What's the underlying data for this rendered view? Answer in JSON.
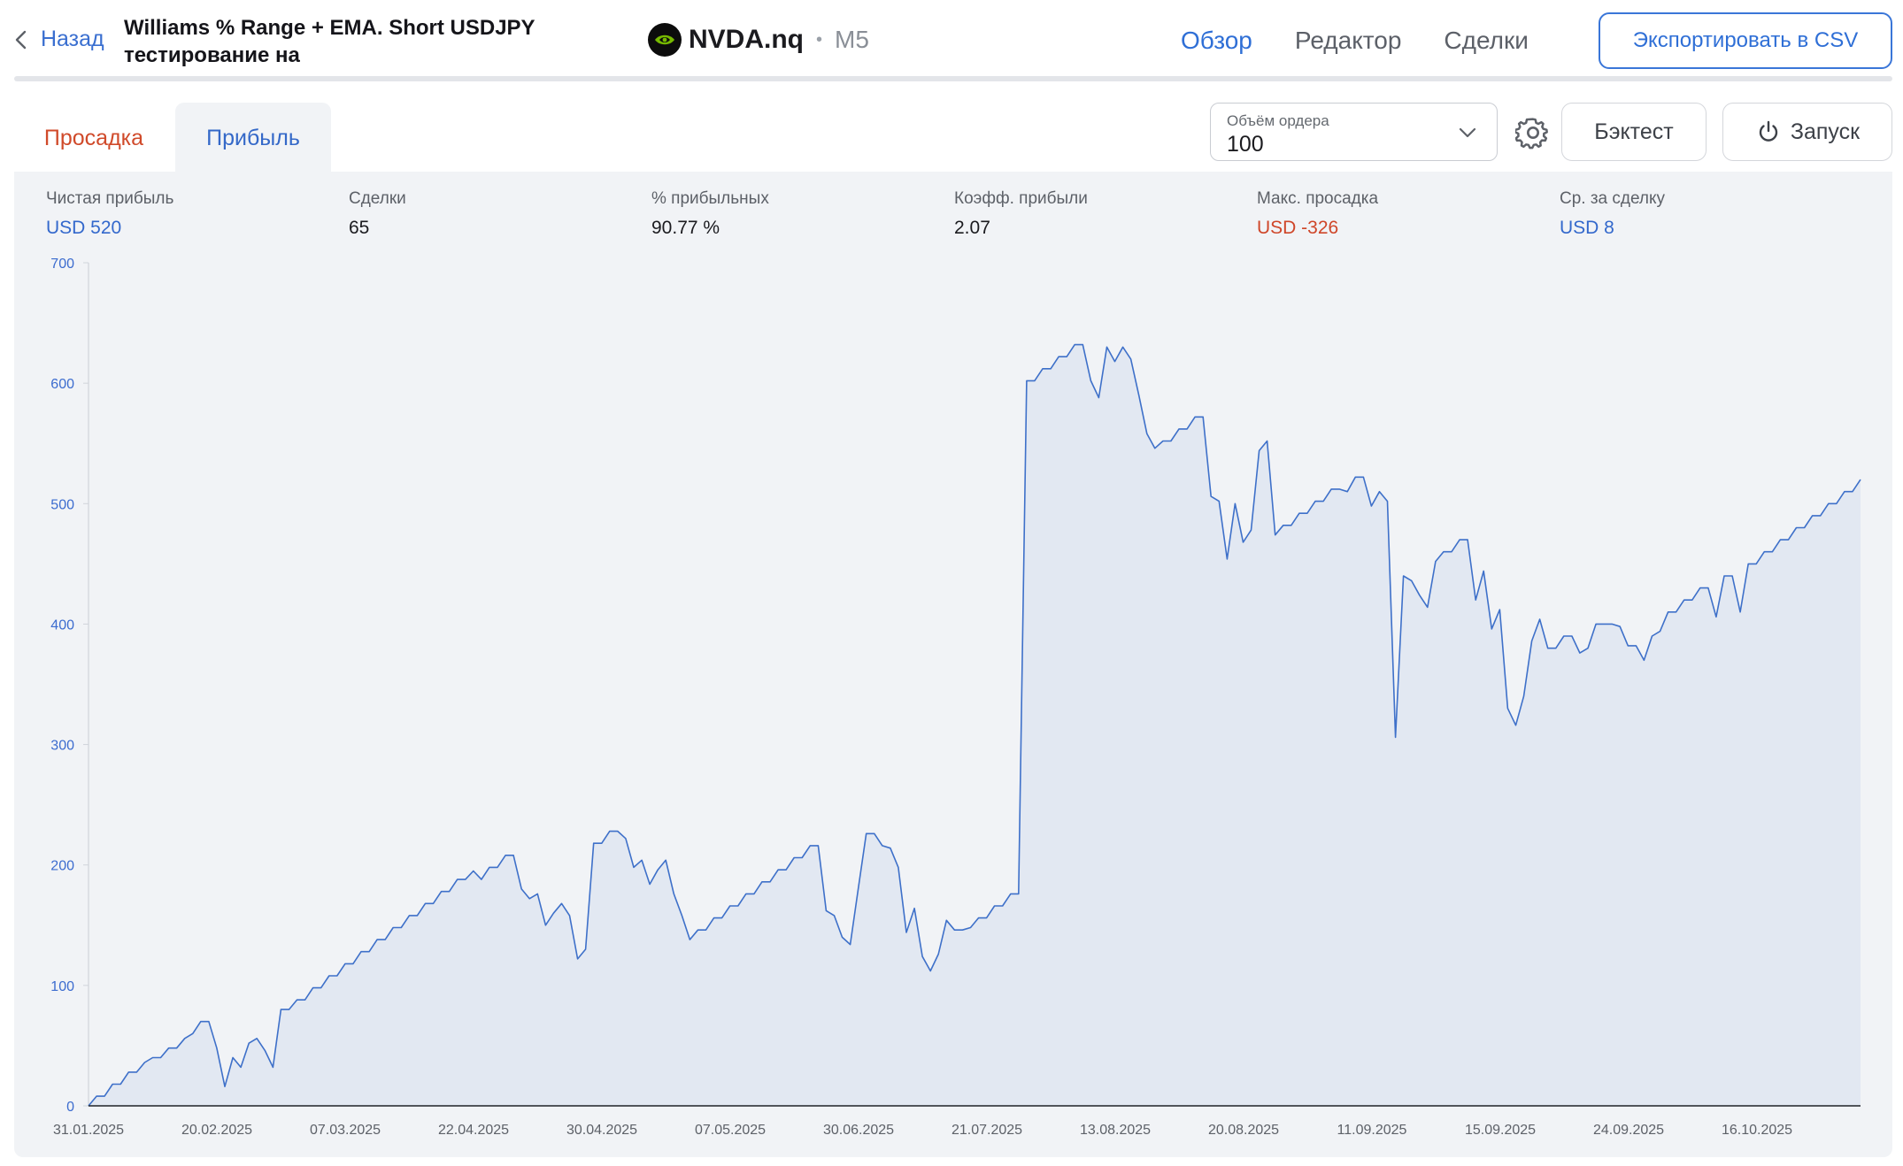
{
  "header": {
    "back_label": "Назад",
    "title": "Williams % Range + EMA. Short USDJPY тестирование на",
    "symbol": "NVDA.nq",
    "separator": "•",
    "timeframe": "M5",
    "tabs": [
      {
        "label": "Обзор",
        "active": true
      },
      {
        "label": "Редактор",
        "active": false
      },
      {
        "label": "Сделки",
        "active": false
      }
    ],
    "export_label": "Экспортировать в CSV"
  },
  "toolbar": {
    "drawdown_tab": "Просадка",
    "profit_tab": "Прибыль",
    "order_volume_label": "Объём ордера",
    "order_volume_value": "100",
    "backtest_label": "Бэктест",
    "run_label": "Запуск"
  },
  "stats": [
    {
      "label": "Чистая прибыль",
      "value": "USD 520",
      "tone": "blue"
    },
    {
      "label": "Сделки",
      "value": "65",
      "tone": "dark"
    },
    {
      "label": "% прибыльных",
      "value": "90.77 %",
      "tone": "dark"
    },
    {
      "label": "Коэфф. прибыли",
      "value": "2.07",
      "tone": "dark"
    },
    {
      "label": "Макс. просадка",
      "value": "USD -326",
      "tone": "red"
    },
    {
      "label": "Ср. за сделку",
      "value": "USD 8",
      "tone": "blue"
    }
  ],
  "colors": {
    "accent": "#2f6fd6",
    "positive": "#3368cc",
    "negative": "#cf4629",
    "line": "#3e70c9",
    "area": "#e2e8f2",
    "panel": "#f1f3f6"
  },
  "icons": {
    "back": "chevron-left-icon",
    "symbol_logo": "nvidia-logo-icon",
    "order_dropdown": "chevron-down-icon",
    "settings": "gear-icon",
    "run": "power-icon"
  },
  "chart_data": {
    "type": "area",
    "title": "",
    "xlabel": "",
    "ylabel": "",
    "ylim": [
      0,
      700
    ],
    "y_ticks": [
      0,
      100,
      200,
      300,
      400,
      500,
      600,
      700
    ],
    "x_tick_labels": [
      "31.01.2025",
      "20.02.2025",
      "07.03.2025",
      "22.04.2025",
      "30.04.2025",
      "07.05.2025",
      "30.06.2025",
      "21.07.2025",
      "13.08.2025",
      "20.08.2025",
      "11.09.2025",
      "15.09.2025",
      "24.09.2025",
      "16.10.2025"
    ],
    "grid": false,
    "legend": "none",
    "series": [
      {
        "values": [
          0,
          8,
          8,
          18,
          18,
          28,
          28,
          36,
          40,
          40,
          48,
          48,
          56,
          60,
          70,
          70,
          48,
          16,
          40,
          32,
          52,
          56,
          46,
          32,
          80,
          80,
          88,
          88,
          98,
          98,
          108,
          108,
          118,
          118,
          128,
          128,
          138,
          138,
          148,
          148,
          158,
          158,
          168,
          168,
          178,
          178,
          188,
          188,
          195,
          188,
          198,
          198,
          208,
          208,
          180,
          172,
          176,
          150,
          160,
          168,
          158,
          122,
          130,
          218,
          218,
          228,
          228,
          222,
          198,
          204,
          184,
          196,
          204,
          176,
          158,
          138,
          146,
          146,
          156,
          156,
          166,
          166,
          176,
          176,
          186,
          186,
          196,
          196,
          206,
          206,
          216,
          216,
          162,
          158,
          140,
          134,
          180,
          226,
          226,
          216,
          214,
          198,
          144,
          164,
          124,
          112,
          126,
          154,
          146,
          146,
          148,
          156,
          156,
          166,
          166,
          176,
          176,
          602,
          602,
          612,
          612,
          622,
          622,
          632,
          632,
          602,
          588,
          630,
          618,
          630,
          620,
          590,
          558,
          546,
          552,
          552,
          562,
          562,
          572,
          572,
          506,
          502,
          454,
          500,
          468,
          478,
          544,
          552,
          474,
          482,
          482,
          492,
          492,
          502,
          502,
          512,
          512,
          510,
          522,
          522,
          498,
          510,
          502,
          306,
          440,
          436,
          424,
          414,
          452,
          460,
          460,
          470,
          470,
          420,
          444,
          396,
          412,
          330,
          316,
          340,
          386,
          404,
          380,
          380,
          390,
          390,
          376,
          380,
          400,
          400,
          400,
          398,
          382,
          382,
          370,
          390,
          394,
          410,
          410,
          420,
          420,
          430,
          430,
          406,
          440,
          440,
          410,
          450,
          450,
          460,
          460,
          470,
          470,
          480,
          480,
          490,
          490,
          500,
          500,
          510,
          510,
          520
        ]
      }
    ]
  }
}
